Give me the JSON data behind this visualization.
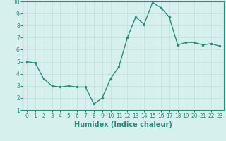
{
  "x": [
    0,
    1,
    2,
    3,
    4,
    5,
    6,
    7,
    8,
    9,
    10,
    11,
    12,
    13,
    14,
    15,
    16,
    17,
    18,
    19,
    20,
    21,
    22,
    23
  ],
  "y": [
    5.0,
    4.9,
    3.6,
    3.0,
    2.9,
    3.0,
    2.9,
    2.9,
    1.5,
    2.0,
    3.6,
    4.6,
    7.0,
    8.7,
    8.1,
    9.9,
    9.5,
    8.7,
    6.4,
    6.6,
    6.6,
    6.4,
    6.5,
    6.3
  ],
  "line_color": "#2e8b7a",
  "marker": ".",
  "marker_size": 3,
  "line_width": 1.0,
  "xlabel": "Humidex (Indice chaleur)",
  "xlabel_fontsize": 7,
  "xlabel_bold": true,
  "xlim": [
    -0.5,
    23.5
  ],
  "ylim": [
    1,
    10
  ],
  "yticks": [
    1,
    2,
    3,
    4,
    5,
    6,
    7,
    8,
    9,
    10
  ],
  "xticks": [
    0,
    1,
    2,
    3,
    4,
    5,
    6,
    7,
    8,
    9,
    10,
    11,
    12,
    13,
    14,
    15,
    16,
    17,
    18,
    19,
    20,
    21,
    22,
    23
  ],
  "tick_fontsize": 5.5,
  "bg_color": "#d6f0ee",
  "grid_color": "#c4dedd",
  "grid_linewidth": 0.5,
  "spine_color": "#2e8b7a"
}
